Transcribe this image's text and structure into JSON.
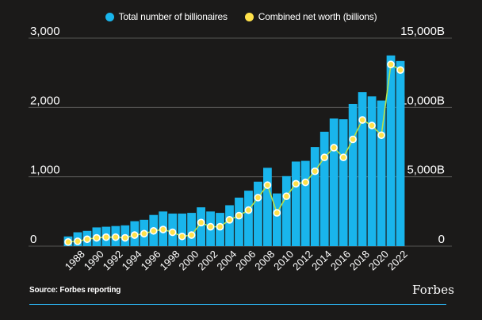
{
  "colors": {
    "background": "#1b1a19",
    "bars": "#19b5ec",
    "line": "#b8e04a",
    "dot_fill": "#ffe14a",
    "dot_stroke": "#ffffff",
    "text": "#ffffff",
    "divider": "#2aa6dd"
  },
  "legend": {
    "item1": "Total number of billionaires",
    "item2": "Combined net worth (billions)"
  },
  "source": "Source: Forbes reporting",
  "logo": "Forbes",
  "chart_data": {
    "type": "bar",
    "x": [
      1987,
      1988,
      1989,
      1990,
      1991,
      1992,
      1993,
      1994,
      1995,
      1996,
      1997,
      1998,
      1999,
      2000,
      2001,
      2002,
      2003,
      2004,
      2005,
      2006,
      2007,
      2008,
      2009,
      2010,
      2011,
      2012,
      2013,
      2014,
      2015,
      2016,
      2017,
      2018,
      2019,
      2020,
      2021,
      2022
    ],
    "x_tick_labels": [
      "1988",
      "1990",
      "1992",
      "1994",
      "1996",
      "1998",
      "2000",
      "2002",
      "2004",
      "2006",
      "2008",
      "2010",
      "2012",
      "2014",
      "2016",
      "2018",
      "2020",
      "2022"
    ],
    "series": [
      {
        "name": "Total number of billionaires",
        "type": "bar",
        "axis": "left",
        "values": [
          140,
          200,
          220,
          270,
          280,
          290,
          300,
          360,
          380,
          450,
          500,
          470,
          470,
          480,
          560,
          500,
          480,
          590,
          700,
          800,
          930,
          1130,
          760,
          1010,
          1220,
          1230,
          1430,
          1650,
          1840,
          1830,
          2050,
          2220,
          2160,
          2100,
          2750,
          2670
        ]
      },
      {
        "name": "Combined net worth (billions)",
        "type": "line",
        "axis": "right",
        "values": [
          300,
          350,
          500,
          600,
          650,
          650,
          600,
          800,
          900,
          1100,
          1200,
          1000,
          700,
          800,
          1700,
          1400,
          1400,
          1900,
          2200,
          2600,
          3500,
          4400,
          2400,
          3600,
          4500,
          4600,
          5400,
          6400,
          7100,
          6400,
          7700,
          9100,
          8700,
          8000,
          13100,
          12700
        ]
      }
    ],
    "y_left": {
      "min": 0,
      "max": 3000,
      "ticks": [
        "0",
        "1,000",
        "2,000",
        "3,000"
      ],
      "tick_values": [
        0,
        1000,
        2000,
        3000
      ]
    },
    "y_right": {
      "min": 0,
      "max": 15000,
      "ticks": [
        "0",
        "5,000B",
        "10,000B",
        "15,000B"
      ],
      "tick_values": [
        0,
        5000,
        10000,
        15000
      ]
    },
    "grid": true,
    "legend_position": "top-center"
  }
}
